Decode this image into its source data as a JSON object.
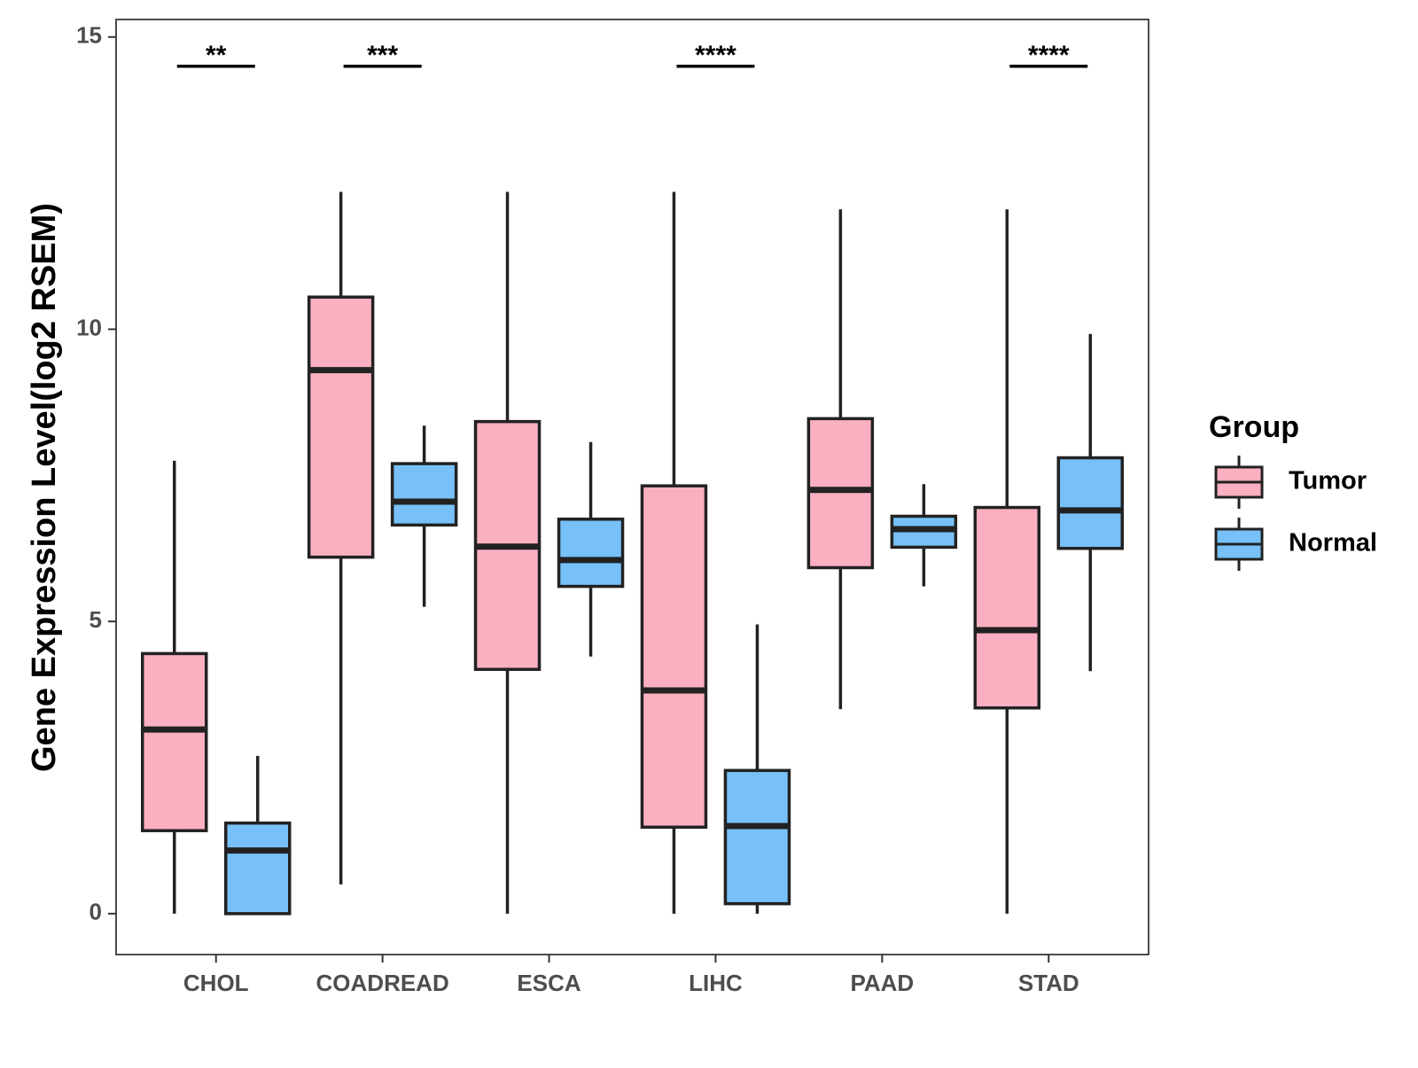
{
  "chart_data": {
    "type": "boxplot",
    "title": "",
    "xlabel": "",
    "ylabel": "Gene Expression Level(log2 RSEM)",
    "ylim": [
      -0.7,
      15.3
    ],
    "yticks": [
      0,
      5,
      10,
      15
    ],
    "categories": [
      "CHOL",
      "COADREAD",
      "ESCA",
      "LIHC",
      "PAAD",
      "STAD"
    ],
    "legend": {
      "title": "Group",
      "position": "right"
    },
    "series": [
      {
        "name": "Tumor",
        "color": "#FBB0C2",
        "boxes": [
          {
            "category": "CHOL",
            "min": 0.0,
            "q1": 1.42,
            "median": 3.15,
            "q3": 4.45,
            "max": 7.75
          },
          {
            "category": "COADREAD",
            "min": 0.5,
            "q1": 6.1,
            "median": 9.3,
            "q3": 10.55,
            "max": 12.35
          },
          {
            "category": "ESCA",
            "min": 0.0,
            "q1": 4.18,
            "median": 6.28,
            "q3": 8.42,
            "max": 12.35
          },
          {
            "category": "LIHC",
            "min": 0.0,
            "q1": 1.48,
            "median": 3.82,
            "q3": 7.32,
            "max": 12.35
          },
          {
            "category": "PAAD",
            "min": 3.5,
            "q1": 5.92,
            "median": 7.25,
            "q3": 8.47,
            "max": 12.05
          },
          {
            "category": "STAD",
            "min": 0.0,
            "q1": 3.52,
            "median": 4.85,
            "q3": 6.95,
            "max": 12.05
          }
        ]
      },
      {
        "name": "Normal",
        "color": "#77C1F8",
        "boxes": [
          {
            "category": "CHOL",
            "min": 0.0,
            "q1": 0.0,
            "median": 1.08,
            "q3": 1.55,
            "max": 2.7
          },
          {
            "category": "COADREAD",
            "min": 5.25,
            "q1": 6.65,
            "median": 7.05,
            "q3": 7.7,
            "max": 8.35
          },
          {
            "category": "ESCA",
            "min": 4.4,
            "q1": 5.6,
            "median": 6.05,
            "q3": 6.75,
            "max": 8.07
          },
          {
            "category": "LIHC",
            "min": 0.0,
            "q1": 0.17,
            "median": 1.5,
            "q3": 2.45,
            "max": 4.95
          },
          {
            "category": "PAAD",
            "min": 5.6,
            "q1": 6.27,
            "median": 6.58,
            "q3": 6.8,
            "max": 7.35
          },
          {
            "category": "STAD",
            "min": 4.15,
            "q1": 6.25,
            "median": 6.9,
            "q3": 7.8,
            "max": 9.92
          }
        ]
      }
    ],
    "significance": [
      {
        "category": "CHOL",
        "label": "**"
      },
      {
        "category": "COADREAD",
        "label": "***"
      },
      {
        "category": "LIHC",
        "label": "****"
      },
      {
        "category": "STAD",
        "label": "****"
      }
    ],
    "significance_level": 14.5
  }
}
